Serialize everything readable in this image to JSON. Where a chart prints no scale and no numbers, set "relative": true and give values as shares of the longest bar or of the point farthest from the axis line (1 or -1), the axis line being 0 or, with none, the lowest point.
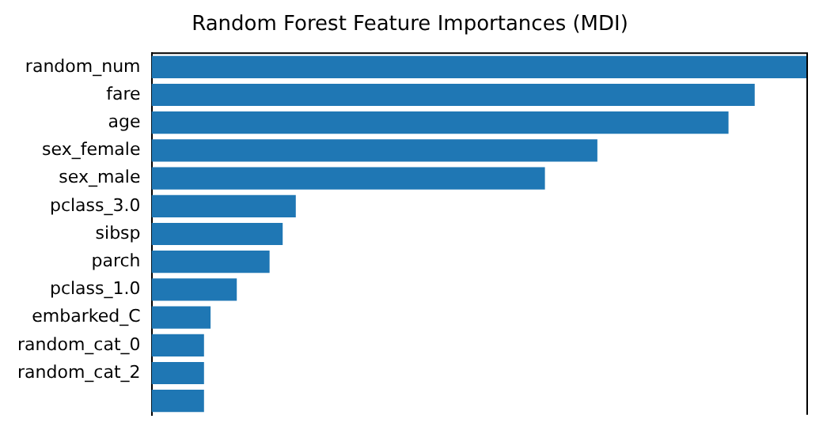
{
  "chart_data": {
    "type": "bar",
    "orientation": "horizontal",
    "relative": true,
    "title": "Random Forest Feature Importances (MDI)",
    "categories": [
      "random_num",
      "fare",
      "age",
      "sex_female",
      "sex_male",
      "pclass_3.0",
      "sibsp",
      "parch",
      "pclass_1.0",
      "embarked_C",
      "random_cat_0",
      "random_cat_2",
      null
    ],
    "values": [
      1,
      0.92,
      0.88,
      0.68,
      0.6,
      0.22,
      0.2,
      0.18,
      0.13,
      0.09,
      0.08,
      0.08,
      0.08
    ],
    "color": "#1f77b4",
    "grid": false,
    "legend": false
  }
}
